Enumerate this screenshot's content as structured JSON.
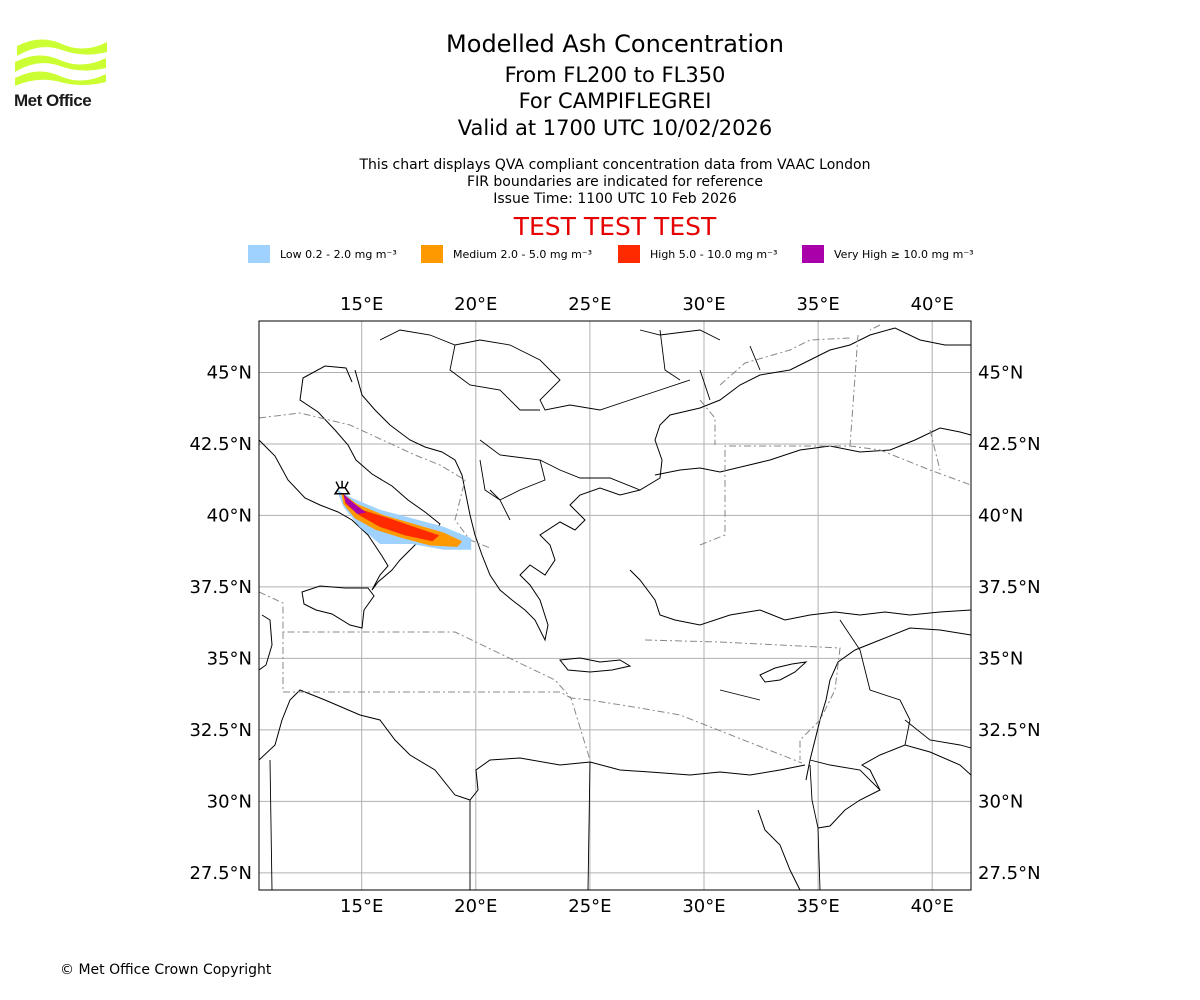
{
  "brand": {
    "name": "Met Office",
    "logo_color": "#ccff33"
  },
  "title": {
    "main": "Modelled Ash Concentration",
    "levels": "From FL200 to FL350",
    "volcano": "For CAMPIFLEGREI",
    "valid": "Valid at 1700 UTC 10/02/2026"
  },
  "info": {
    "line1": "This chart displays QVA compliant concentration data from VAAC London",
    "line2": "FIR boundaries are indicated for reference",
    "line3": "Issue Time: 1100 UTC 10 Feb 2026"
  },
  "test_banner": "TEST TEST TEST",
  "legend": [
    {
      "label": "Low 0.2 - 2.0 mg m⁻³",
      "color": "#a0d2ff"
    },
    {
      "label": "Medium 2.0 - 5.0 mg m⁻³",
      "color": "#ff9900"
    },
    {
      "label": "High 5.0 - 10.0 mg m⁻³",
      "color": "#ff2a00"
    },
    {
      "label": "Very High  ≥  10.0 mg m⁻³",
      "color": "#aa00aa"
    }
  ],
  "map": {
    "lon_range": [
      10.5,
      41.7
    ],
    "lat_range": [
      26.9,
      46.8
    ],
    "lon_ticks": [
      15,
      20,
      25,
      30,
      35,
      40
    ],
    "lon_tick_labels": [
      "15°E",
      "20°E",
      "25°E",
      "30°E",
      "35°E",
      "40°E"
    ],
    "lat_ticks": [
      27.5,
      30,
      32.5,
      35,
      37.5,
      40,
      42.5,
      45
    ],
    "lat_tick_labels": [
      "27.5°N",
      "30°N",
      "32.5°N",
      "35°N",
      "37.5°N",
      "40°N",
      "42.5°N",
      "45°N"
    ],
    "volcano_location": {
      "lon": 14.14,
      "lat": 40.83
    },
    "ash_plume": {
      "low": [
        [
          13.9,
          40.9
        ],
        [
          14.6,
          40.6
        ],
        [
          15.8,
          40.2
        ],
        [
          17.2,
          39.9
        ],
        [
          18.6,
          39.6
        ],
        [
          19.8,
          39.2
        ],
        [
          19.8,
          38.8
        ],
        [
          18.6,
          38.8
        ],
        [
          17.2,
          39.0
        ],
        [
          15.8,
          39.0
        ],
        [
          14.9,
          39.6
        ],
        [
          14.2,
          40.3
        ]
      ],
      "medium": [
        [
          14.1,
          40.8
        ],
        [
          14.8,
          40.4
        ],
        [
          16.0,
          40.0
        ],
        [
          17.3,
          39.7
        ],
        [
          18.6,
          39.4
        ],
        [
          19.4,
          39.1
        ],
        [
          19.2,
          38.9
        ],
        [
          18.0,
          38.95
        ],
        [
          16.8,
          39.2
        ],
        [
          15.6,
          39.5
        ],
        [
          14.7,
          39.9
        ],
        [
          14.2,
          40.4
        ]
      ],
      "high": [
        [
          14.2,
          40.7
        ],
        [
          15.0,
          40.2
        ],
        [
          16.2,
          39.9
        ],
        [
          17.3,
          39.6
        ],
        [
          18.4,
          39.3
        ],
        [
          18.1,
          39.1
        ],
        [
          16.9,
          39.3
        ],
        [
          15.8,
          39.6
        ],
        [
          14.9,
          40.0
        ],
        [
          14.3,
          40.4
        ]
      ],
      "very_high": [
        [
          14.2,
          40.75
        ],
        [
          14.7,
          40.4
        ],
        [
          15.2,
          40.1
        ],
        [
          14.8,
          40.05
        ],
        [
          14.3,
          40.45
        ]
      ]
    }
  },
  "copyright": "© Met Office Crown Copyright"
}
